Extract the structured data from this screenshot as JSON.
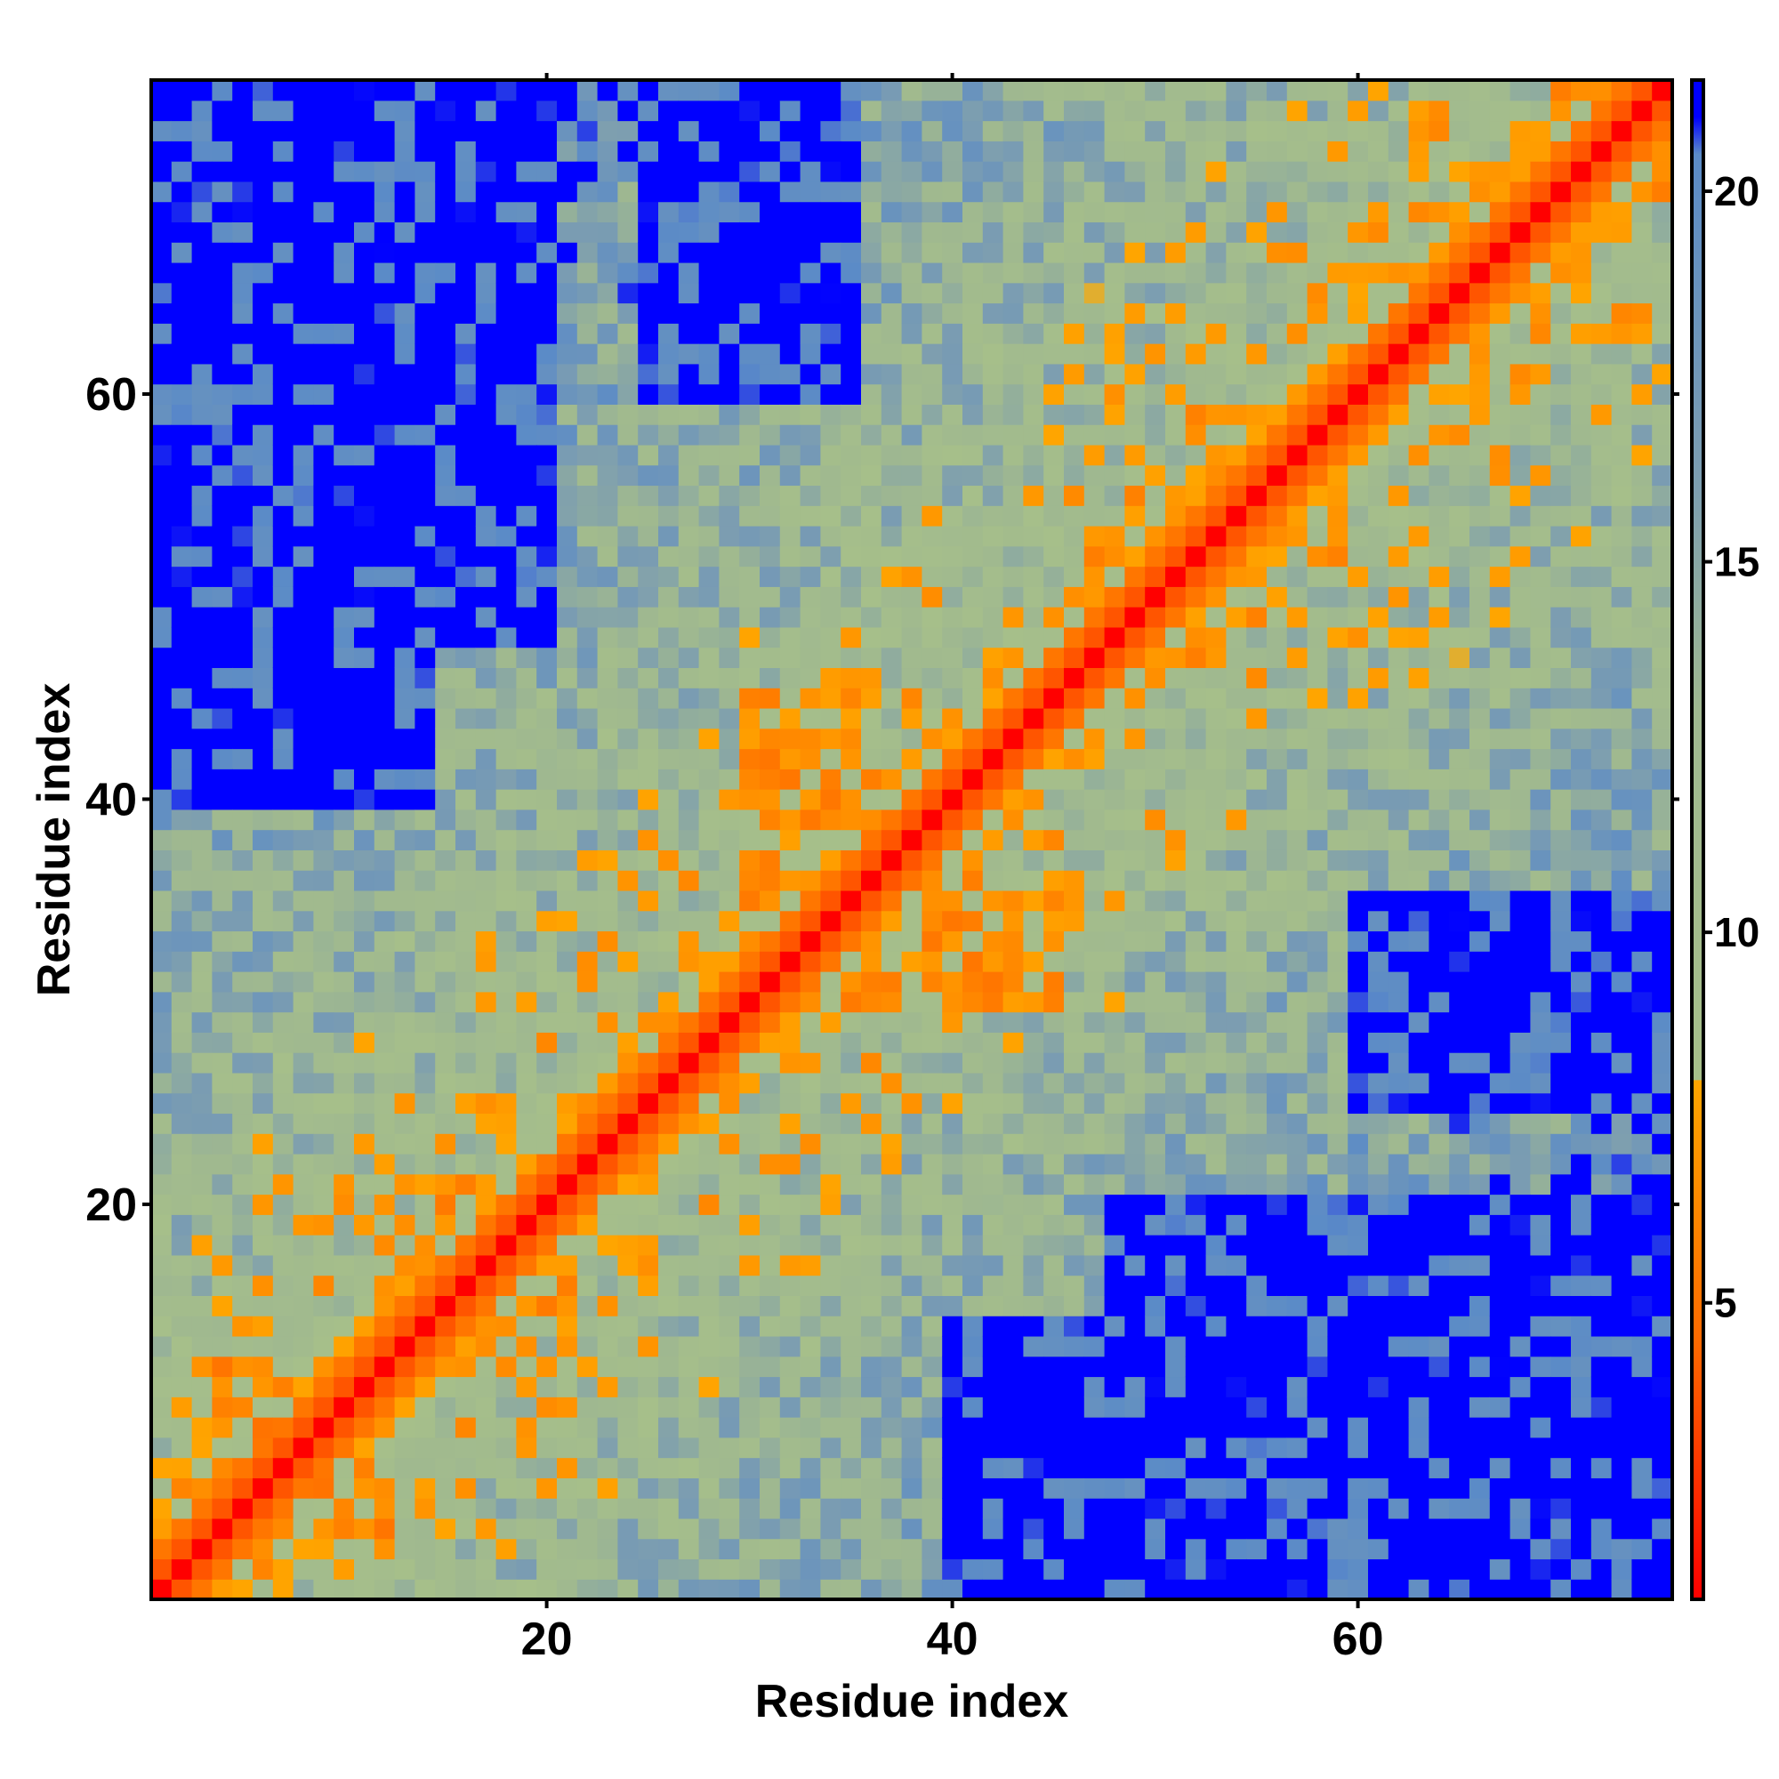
{
  "chart_data": {
    "type": "heatmap",
    "title": "",
    "xlabel": "Residue index",
    "ylabel": "Residue index",
    "n_residues": 75,
    "xlim": [
      1,
      75
    ],
    "ylim": [
      1,
      75
    ],
    "x_ticks": [
      20,
      40,
      60
    ],
    "y_ticks": [
      20,
      40,
      60
    ],
    "x_tick_labels": [
      "20",
      "40",
      "60"
    ],
    "y_tick_labels": [
      "20",
      "40",
      "60"
    ],
    "colorbar": {
      "range": [
        1,
        21.5
      ],
      "ticks": [
        5,
        10,
        15,
        20
      ],
      "tick_labels": [
        "5",
        "10",
        "15",
        "20"
      ],
      "stops": [
        {
          "value": 1,
          "color": "#ff0000"
        },
        {
          "value": 4.5,
          "color": "#ff6a00"
        },
        {
          "value": 8,
          "color": "#ffa500"
        },
        {
          "value": 8.01,
          "color": "#a6bf8a"
        },
        {
          "value": 13,
          "color": "#9fb890"
        },
        {
          "value": 16,
          "color": "#7d9eb0"
        },
        {
          "value": 20.5,
          "color": "#5b8bc7"
        },
        {
          "value": 21,
          "color": "#0000ff"
        },
        {
          "value": 21.5,
          "color": "#0000ff"
        }
      ]
    },
    "value_description": "Symmetric residue-residue distance matrix; 0 on diagonal, red/orange near diagonal (< 8), green/blue at intermediate distances, saturated blue for distances above 21.",
    "notable_blocks": [
      {
        "i": [
          1,
          14
        ],
        "j": [
          40,
          75
        ],
        "level": "far"
      },
      {
        "i": [
          58,
          75
        ],
        "j": [
          1,
          14
        ],
        "level": "far"
      },
      {
        "i": [
          48,
          75
        ],
        "j": [
          1,
          20
        ],
        "level": "far"
      },
      {
        "i": [
          60,
          75
        ],
        "j": [
          25,
          35
        ],
        "level": "far"
      },
      {
        "i": [
          30,
          36
        ],
        "j": [
          38,
          45
        ],
        "level": "contact"
      },
      {
        "i": [
          2,
          10
        ],
        "j": [
          4,
          12
        ],
        "level": "contact"
      }
    ],
    "grid": false,
    "legend": "colorbar-right"
  },
  "colors": {
    "axis": "#000000",
    "background": "#ffffff"
  }
}
